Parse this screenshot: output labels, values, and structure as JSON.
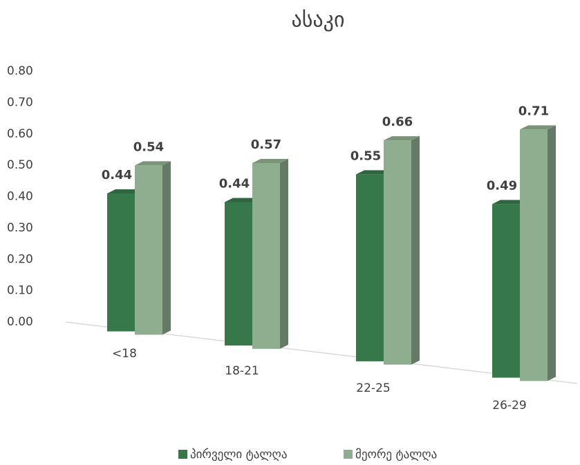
{
  "chart_data": {
    "type": "bar3d",
    "title": "ასაკი",
    "categories": [
      "<18",
      "18-21",
      "22-25",
      "26-29"
    ],
    "series": [
      {
        "name": "პირველი ტალღა",
        "color": "#37784a",
        "values": [
          0.44,
          0.44,
          0.55,
          0.49
        ]
      },
      {
        "name": "მეორე ტალღა",
        "color": "#8fae8f",
        "values": [
          0.54,
          0.57,
          0.66,
          0.71
        ]
      }
    ],
    "ylim": [
      0,
      0.8
    ],
    "yticks": [
      {
        "value": 0,
        "label": "0.00"
      },
      {
        "value": 0.1,
        "label": "0.10"
      },
      {
        "value": 0.2,
        "label": "0.20"
      },
      {
        "value": 0.3,
        "label": "0.30"
      },
      {
        "value": 0.4,
        "label": "0.40"
      },
      {
        "value": 0.5,
        "label": "0.50"
      },
      {
        "value": 0.6,
        "label": "0.60"
      },
      {
        "value": 0.7,
        "label": "0.70"
      },
      {
        "value": 0.8,
        "label": "0.80"
      }
    ],
    "legend": "bottom"
  }
}
